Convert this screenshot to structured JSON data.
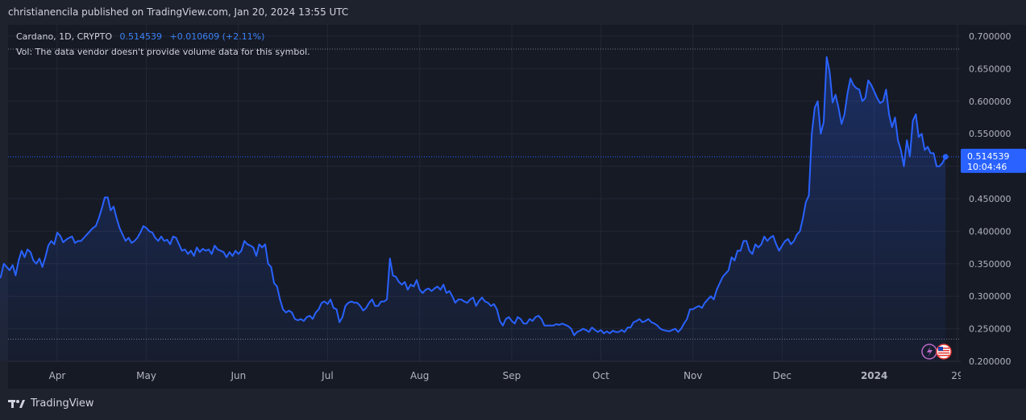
{
  "header": {
    "published": "christianencila published on TradingView.com, Jan 20, 2024 13:55 UTC"
  },
  "legend": {
    "symbol": "Cardano, 1D, CRYPTO",
    "last": "0.514539",
    "change": "+0.010609 (+2.11%)",
    "volume_note": "Vol: The data vendor doesn't provide volume data for this symbol."
  },
  "price_tag": {
    "price": "0.514539",
    "countdown": "10:04:46"
  },
  "footer": {
    "brand": "TradingView"
  },
  "colors": {
    "line": "#2962ff",
    "tag": "#2962ff",
    "background": "#161a25",
    "grid": "#232733"
  },
  "chart_data": {
    "type": "area",
    "title": "Cardano, 1D, CRYPTO",
    "ylim": [
      0.2,
      0.7
    ],
    "y_ticks": [
      "0.700000",
      "0.650000",
      "0.600000",
      "0.550000",
      "0.500000",
      "0.450000",
      "0.400000",
      "0.350000",
      "0.300000",
      "0.250000",
      "0.200000"
    ],
    "x_ticks": [
      {
        "label": "Apr",
        "day": 20
      },
      {
        "label": "May",
        "day": 50
      },
      {
        "label": "Jun",
        "day": 81
      },
      {
        "label": "Jul",
        "day": 111
      },
      {
        "label": "Aug",
        "day": 142
      },
      {
        "label": "Sep",
        "day": 173
      },
      {
        "label": "Oct",
        "day": 203
      },
      {
        "label": "Nov",
        "day": 234
      },
      {
        "label": "Dec",
        "day": 264
      },
      {
        "label": "2024",
        "day": 295
      },
      {
        "label": "29",
        "day": 323
      }
    ],
    "start_date": "2023-03-12",
    "last_value": 0.514539,
    "lows_line": 0.234,
    "values": [
      0.325,
      0.33,
      0.35,
      0.345,
      0.34,
      0.348,
      0.332,
      0.355,
      0.37,
      0.36,
      0.372,
      0.368,
      0.355,
      0.35,
      0.358,
      0.345,
      0.36,
      0.378,
      0.385,
      0.38,
      0.398,
      0.393,
      0.383,
      0.387,
      0.39,
      0.392,
      0.382,
      0.385,
      0.385,
      0.39,
      0.395,
      0.4,
      0.405,
      0.408,
      0.42,
      0.435,
      0.452,
      0.452,
      0.432,
      0.438,
      0.42,
      0.405,
      0.395,
      0.385,
      0.39,
      0.382,
      0.385,
      0.39,
      0.398,
      0.408,
      0.405,
      0.4,
      0.398,
      0.39,
      0.385,
      0.392,
      0.385,
      0.387,
      0.38,
      0.392,
      0.39,
      0.38,
      0.37,
      0.372,
      0.365,
      0.37,
      0.362,
      0.375,
      0.368,
      0.373,
      0.37,
      0.372,
      0.365,
      0.378,
      0.372,
      0.37,
      0.368,
      0.36,
      0.368,
      0.362,
      0.37,
      0.365,
      0.37,
      0.385,
      0.38,
      0.378,
      0.375,
      0.362,
      0.38,
      0.375,
      0.38,
      0.35,
      0.345,
      0.32,
      0.315,
      0.295,
      0.28,
      0.275,
      0.278,
      0.275,
      0.265,
      0.263,
      0.265,
      0.262,
      0.268,
      0.27,
      0.265,
      0.275,
      0.28,
      0.29,
      0.292,
      0.288,
      0.295,
      0.282,
      0.28,
      0.26,
      0.268,
      0.285,
      0.29,
      0.292,
      0.29,
      0.29,
      0.285,
      0.278,
      0.282,
      0.29,
      0.295,
      0.285,
      0.285,
      0.292,
      0.292,
      0.295,
      0.358,
      0.332,
      0.33,
      0.322,
      0.318,
      0.322,
      0.31,
      0.318,
      0.315,
      0.325,
      0.31,
      0.305,
      0.31,
      0.312,
      0.308,
      0.312,
      0.315,
      0.31,
      0.318,
      0.305,
      0.308,
      0.3,
      0.29,
      0.295,
      0.295,
      0.292,
      0.29,
      0.295,
      0.298,
      0.285,
      0.293,
      0.298,
      0.292,
      0.29,
      0.285,
      0.288,
      0.28,
      0.262,
      0.255,
      0.265,
      0.268,
      0.262,
      0.258,
      0.268,
      0.265,
      0.258,
      0.258,
      0.265,
      0.262,
      0.268,
      0.27,
      0.265,
      0.255,
      0.255,
      0.255,
      0.255,
      0.257,
      0.256,
      0.258,
      0.256,
      0.254,
      0.25,
      0.24,
      0.245,
      0.247,
      0.25,
      0.248,
      0.245,
      0.252,
      0.248,
      0.245,
      0.248,
      0.243,
      0.246,
      0.243,
      0.247,
      0.245,
      0.245,
      0.248,
      0.245,
      0.252,
      0.252,
      0.26,
      0.262,
      0.265,
      0.26,
      0.262,
      0.265,
      0.26,
      0.258,
      0.255,
      0.25,
      0.248,
      0.247,
      0.246,
      0.248,
      0.25,
      0.245,
      0.25,
      0.258,
      0.265,
      0.28,
      0.28,
      0.283,
      0.285,
      0.282,
      0.29,
      0.295,
      0.3,
      0.295,
      0.31,
      0.32,
      0.33,
      0.335,
      0.34,
      0.36,
      0.355,
      0.37,
      0.37,
      0.385,
      0.385,
      0.37,
      0.365,
      0.38,
      0.375,
      0.38,
      0.392,
      0.385,
      0.39,
      0.393,
      0.38,
      0.37,
      0.378,
      0.385,
      0.388,
      0.38,
      0.385,
      0.395,
      0.4,
      0.42,
      0.445,
      0.455,
      0.55,
      0.59,
      0.6,
      0.55,
      0.568,
      0.668,
      0.645,
      0.598,
      0.61,
      0.59,
      0.565,
      0.58,
      0.612,
      0.635,
      0.625,
      0.62,
      0.618,
      0.6,
      0.605,
      0.632,
      0.625,
      0.615,
      0.605,
      0.597,
      0.6,
      0.618,
      0.58,
      0.56,
      0.575,
      0.54,
      0.525,
      0.5,
      0.54,
      0.515,
      0.57,
      0.58,
      0.545,
      0.55,
      0.525,
      0.53,
      0.52,
      0.52,
      0.5,
      0.5,
      0.505,
      0.514539
    ]
  }
}
